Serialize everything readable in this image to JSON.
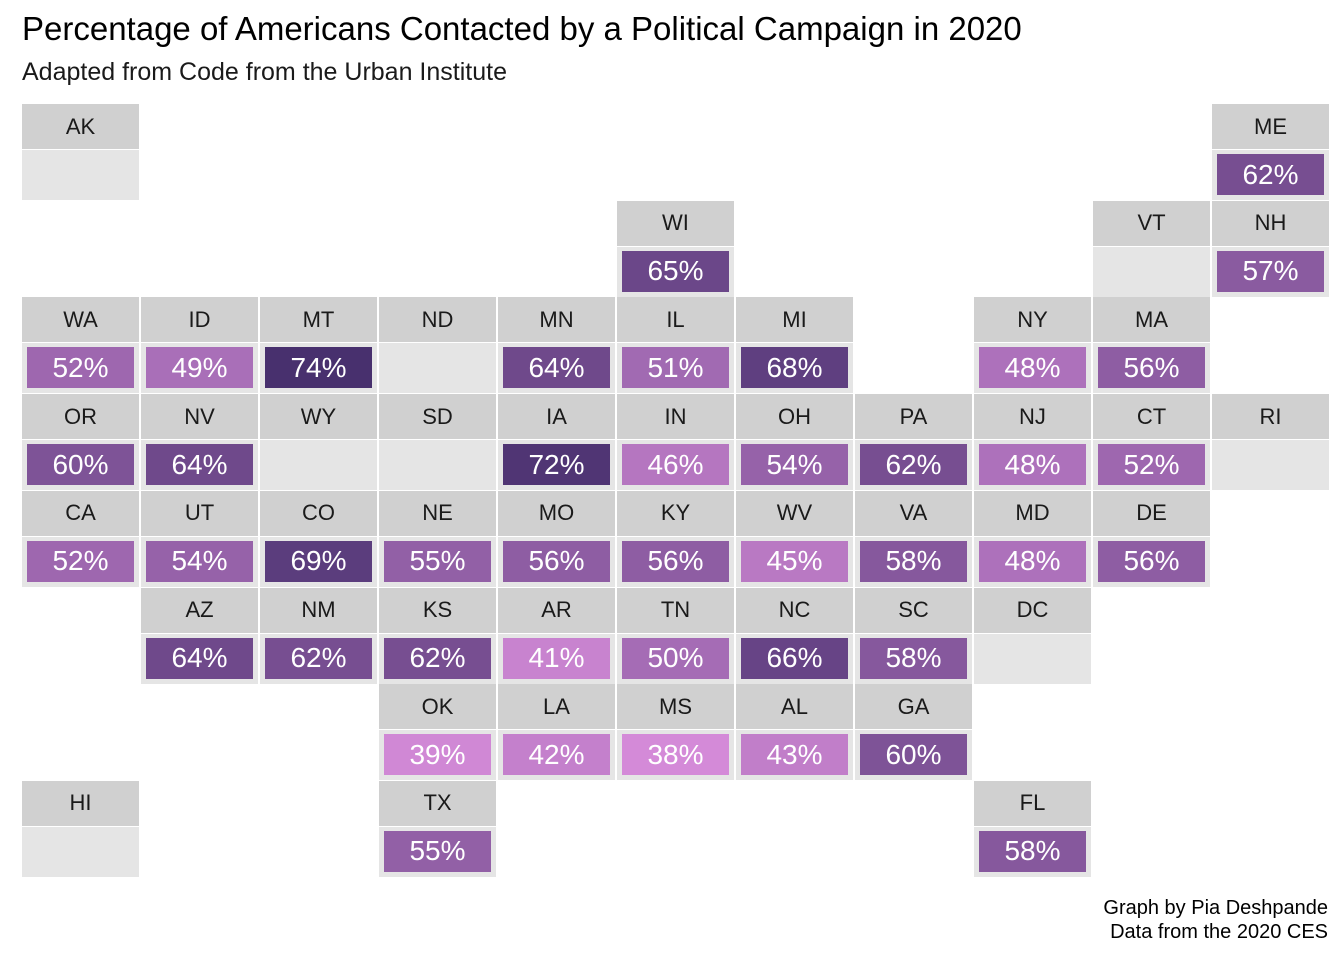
{
  "chart_data": {
    "type": "table",
    "title": "Percentage of Americans Contacted by a Political Campaign in 2020",
    "subtitle": "Adapted from Code from the Urban Institute",
    "caption": [
      "Graph by Pia Deshpande",
      "Data from the 2020 CES"
    ],
    "legend": "none",
    "states": [
      {
        "abbr": "AK",
        "row": 0,
        "col": 0,
        "value": null,
        "label": ""
      },
      {
        "abbr": "ME",
        "row": 0,
        "col": 10,
        "value": 62,
        "label": "62%"
      },
      {
        "abbr": "WI",
        "row": 1,
        "col": 5,
        "value": 65,
        "label": "65%"
      },
      {
        "abbr": "VT",
        "row": 1,
        "col": 9,
        "value": null,
        "label": ""
      },
      {
        "abbr": "NH",
        "row": 1,
        "col": 10,
        "value": 57,
        "label": "57%"
      },
      {
        "abbr": "WA",
        "row": 2,
        "col": 0,
        "value": 52,
        "label": "52%"
      },
      {
        "abbr": "ID",
        "row": 2,
        "col": 1,
        "value": 49,
        "label": "49%"
      },
      {
        "abbr": "MT",
        "row": 2,
        "col": 2,
        "value": 74,
        "label": "74%"
      },
      {
        "abbr": "ND",
        "row": 2,
        "col": 3,
        "value": null,
        "label": ""
      },
      {
        "abbr": "MN",
        "row": 2,
        "col": 4,
        "value": 64,
        "label": "64%"
      },
      {
        "abbr": "IL",
        "row": 2,
        "col": 5,
        "value": 51,
        "label": "51%"
      },
      {
        "abbr": "MI",
        "row": 2,
        "col": 6,
        "value": 68,
        "label": "68%"
      },
      {
        "abbr": "NY",
        "row": 2,
        "col": 8,
        "value": 48,
        "label": "48%"
      },
      {
        "abbr": "MA",
        "row": 2,
        "col": 9,
        "value": 56,
        "label": "56%"
      },
      {
        "abbr": "OR",
        "row": 3,
        "col": 0,
        "value": 60,
        "label": "60%"
      },
      {
        "abbr": "NV",
        "row": 3,
        "col": 1,
        "value": 64,
        "label": "64%"
      },
      {
        "abbr": "WY",
        "row": 3,
        "col": 2,
        "value": null,
        "label": ""
      },
      {
        "abbr": "SD",
        "row": 3,
        "col": 3,
        "value": null,
        "label": ""
      },
      {
        "abbr": "IA",
        "row": 3,
        "col": 4,
        "value": 72,
        "label": "72%"
      },
      {
        "abbr": "IN",
        "row": 3,
        "col": 5,
        "value": 46,
        "label": "46%"
      },
      {
        "abbr": "OH",
        "row": 3,
        "col": 6,
        "value": 54,
        "label": "54%"
      },
      {
        "abbr": "PA",
        "row": 3,
        "col": 7,
        "value": 62,
        "label": "62%"
      },
      {
        "abbr": "NJ",
        "row": 3,
        "col": 8,
        "value": 48,
        "label": "48%"
      },
      {
        "abbr": "CT",
        "row": 3,
        "col": 9,
        "value": 52,
        "label": "52%"
      },
      {
        "abbr": "RI",
        "row": 3,
        "col": 10,
        "value": null,
        "label": ""
      },
      {
        "abbr": "CA",
        "row": 4,
        "col": 0,
        "value": 52,
        "label": "52%"
      },
      {
        "abbr": "UT",
        "row": 4,
        "col": 1,
        "value": 54,
        "label": "54%"
      },
      {
        "abbr": "CO",
        "row": 4,
        "col": 2,
        "value": 69,
        "label": "69%"
      },
      {
        "abbr": "NE",
        "row": 4,
        "col": 3,
        "value": 55,
        "label": "55%"
      },
      {
        "abbr": "MO",
        "row": 4,
        "col": 4,
        "value": 56,
        "label": "56%"
      },
      {
        "abbr": "KY",
        "row": 4,
        "col": 5,
        "value": 56,
        "label": "56%"
      },
      {
        "abbr": "WV",
        "row": 4,
        "col": 6,
        "value": 45,
        "label": "45%"
      },
      {
        "abbr": "VA",
        "row": 4,
        "col": 7,
        "value": 58,
        "label": "58%"
      },
      {
        "abbr": "MD",
        "row": 4,
        "col": 8,
        "value": 48,
        "label": "48%"
      },
      {
        "abbr": "DE",
        "row": 4,
        "col": 9,
        "value": 56,
        "label": "56%"
      },
      {
        "abbr": "AZ",
        "row": 5,
        "col": 1,
        "value": 64,
        "label": "64%"
      },
      {
        "abbr": "NM",
        "row": 5,
        "col": 2,
        "value": 62,
        "label": "62%"
      },
      {
        "abbr": "KS",
        "row": 5,
        "col": 3,
        "value": 62,
        "label": "62%"
      },
      {
        "abbr": "AR",
        "row": 5,
        "col": 4,
        "value": 41,
        "label": "41%"
      },
      {
        "abbr": "TN",
        "row": 5,
        "col": 5,
        "value": 50,
        "label": "50%"
      },
      {
        "abbr": "NC",
        "row": 5,
        "col": 6,
        "value": 66,
        "label": "66%"
      },
      {
        "abbr": "SC",
        "row": 5,
        "col": 7,
        "value": 58,
        "label": "58%"
      },
      {
        "abbr": "DC",
        "row": 5,
        "col": 8,
        "value": null,
        "label": ""
      },
      {
        "abbr": "OK",
        "row": 6,
        "col": 3,
        "value": 39,
        "label": "39%"
      },
      {
        "abbr": "LA",
        "row": 6,
        "col": 4,
        "value": 42,
        "label": "42%"
      },
      {
        "abbr": "MS",
        "row": 6,
        "col": 5,
        "value": 38,
        "label": "38%"
      },
      {
        "abbr": "AL",
        "row": 6,
        "col": 6,
        "value": 43,
        "label": "43%"
      },
      {
        "abbr": "GA",
        "row": 6,
        "col": 7,
        "value": 60,
        "label": "60%"
      },
      {
        "abbr": "HI",
        "row": 7,
        "col": 0,
        "value": null,
        "label": ""
      },
      {
        "abbr": "TX",
        "row": 7,
        "col": 3,
        "value": 55,
        "label": "55%"
      },
      {
        "abbr": "FL",
        "row": 7,
        "col": 8,
        "value": 58,
        "label": "58%"
      }
    ],
    "color_scale": {
      "low_value": 38,
      "high_value": 74,
      "low_color": "#d48ad8",
      "high_color": "#48306e"
    },
    "colors": {
      "header_bg": "#d0d0d0",
      "tile_bg": "#e5e5e5",
      "value_text": "#ffffff"
    }
  }
}
